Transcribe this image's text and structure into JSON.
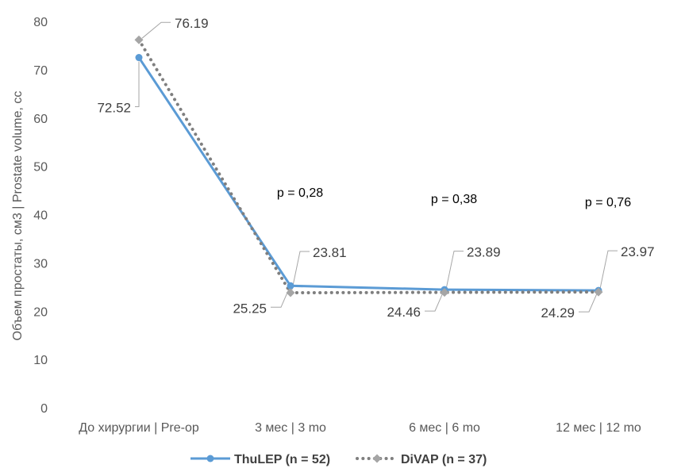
{
  "chart_data": {
    "type": "line",
    "categories": [
      "До хирургии | Pre-op",
      "3 мес | 3 mo",
      "6 мес | 6 mo",
      "12 мес | 12 mo"
    ],
    "series": [
      {
        "name": "ThuLEP (n = 52)",
        "values": [
          72.52,
          25.25,
          24.46,
          24.29
        ],
        "color": "#5b9bd5",
        "marker": "circle",
        "line_style": "solid"
      },
      {
        "name": "DiVAP (n = 37)",
        "values": [
          76.19,
          23.81,
          23.89,
          23.97
        ],
        "color": "#7f7f7f",
        "marker": "diamond",
        "marker_color": "#a5a5a5",
        "line_style": "dotted"
      }
    ],
    "annotations": [
      "p = 0,28",
      "p = 0,38",
      "p = 0,76"
    ],
    "ylabel": "Объем простаты, см3 | Prostate volume, cc",
    "xlabel": "",
    "ylim": [
      0,
      80
    ],
    "yticks": [
      "0",
      "10",
      "20",
      "30",
      "40",
      "50",
      "60",
      "70",
      "80"
    ],
    "legend_position": "bottom",
    "grid": false
  }
}
